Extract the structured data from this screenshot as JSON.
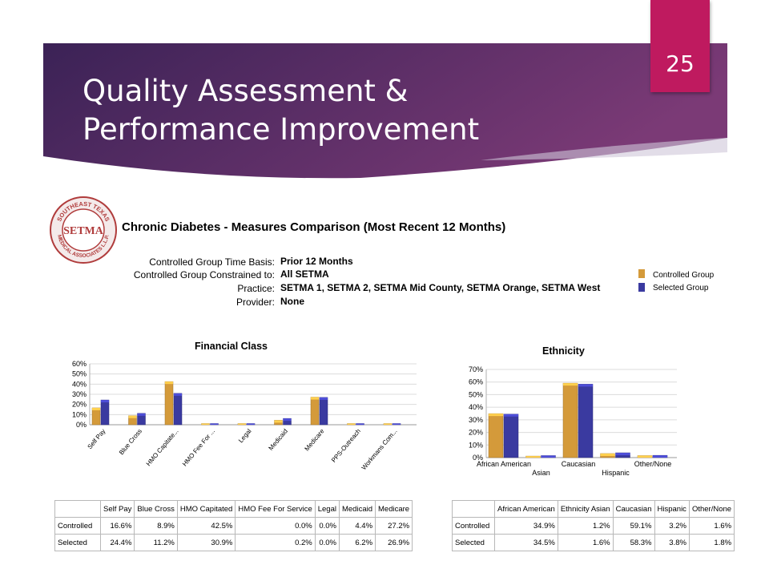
{
  "slide": {
    "title_line1": "Quality Assessment &",
    "title_line2": "Performance Improvement",
    "number": "25"
  },
  "logo": {
    "text_top": "SOUTHEAST TEXAS",
    "text_bottom": "MEDICAL ASSOCIATES L.L.P.",
    "center": "SETMA"
  },
  "report": {
    "title": "Chronic Diabetes -  Measures Comparison (Most Recent 12 Months)",
    "info": [
      {
        "label": "Controlled Group Time Basis:",
        "value": "Prior 12 Months"
      },
      {
        "label": "Controlled Group Constrained to:",
        "value": "All SETMA"
      },
      {
        "label": "Practice:",
        "value": "SETMA 1, SETMA 2, SETMA Mid County, SETMA Orange, SETMA West"
      },
      {
        "label": "Provider:",
        "value": "None"
      }
    ],
    "legend": [
      {
        "label": "Controlled Group",
        "color": "#d49a3a"
      },
      {
        "label": "Selected Group",
        "color": "#3a3aa0"
      }
    ]
  },
  "colors": {
    "controlled": "#d49a3a",
    "selected": "#3a3aa0",
    "banner_start": "#3b2256",
    "banner_end": "#7b3a76",
    "slide_number_bg": "#bf1a5f"
  },
  "chart_data": [
    {
      "type": "bar",
      "title": "Financial Class",
      "categories": [
        "Self Pay",
        "Blue Cross",
        "HMO Capitate...",
        "HMO Fee For ...",
        "Legal",
        "Medicaid",
        "Medicare",
        "PPS-Outreach",
        "Workmans Com..."
      ],
      "series": [
        {
          "name": "Controlled Group",
          "values": [
            16.6,
            8.9,
            42.5,
            0.0,
            0.0,
            4.4,
            27.2,
            0.5,
            0.3
          ]
        },
        {
          "name": "Selected Group",
          "values": [
            24.4,
            11.2,
            30.9,
            0.2,
            0.0,
            6.2,
            26.9,
            0.5,
            0.3
          ]
        }
      ],
      "ylim": [
        0,
        60
      ],
      "yticks": [
        "0%",
        "10%",
        "20%",
        "30%",
        "40%",
        "50%",
        "60%"
      ],
      "grid": true
    },
    {
      "type": "bar",
      "title": "Ethnicity",
      "categories": [
        "African American",
        "Asian",
        "Caucasian",
        "Hispanic",
        "Other/None"
      ],
      "series": [
        {
          "name": "Controlled Group",
          "values": [
            34.9,
            1.2,
            59.1,
            3.2,
            1.6
          ]
        },
        {
          "name": "Selected Group",
          "values": [
            34.5,
            1.6,
            58.3,
            3.8,
            1.8
          ]
        }
      ],
      "ylim": [
        0,
        70
      ],
      "yticks": [
        "0%",
        "10%",
        "20%",
        "30%",
        "40%",
        "50%",
        "60%",
        "70%"
      ],
      "grid": true
    }
  ],
  "tables": {
    "financial": {
      "headers": [
        "",
        "Self Pay",
        "Blue Cross",
        "HMO Capitated",
        "HMO Fee For Service",
        "Legal",
        "Medicaid",
        "Medicare"
      ],
      "rows": [
        [
          "Controlled",
          "16.6%",
          "8.9%",
          "42.5%",
          "0.0%",
          "0.0%",
          "4.4%",
          "27.2%"
        ],
        [
          "Selected",
          "24.4%",
          "11.2%",
          "30.9%",
          "0.2%",
          "0.0%",
          "6.2%",
          "26.9%"
        ]
      ]
    },
    "ethnicity": {
      "headers": [
        "",
        "African American",
        "Ethnicity Asian",
        "Caucasian",
        "Hispanic",
        "Other/None"
      ],
      "rows": [
        [
          "Controlled",
          "34.9%",
          "1.2%",
          "59.1%",
          "3.2%",
          "1.6%"
        ],
        [
          "Selected",
          "34.5%",
          "1.6%",
          "58.3%",
          "3.8%",
          "1.8%"
        ]
      ]
    }
  }
}
